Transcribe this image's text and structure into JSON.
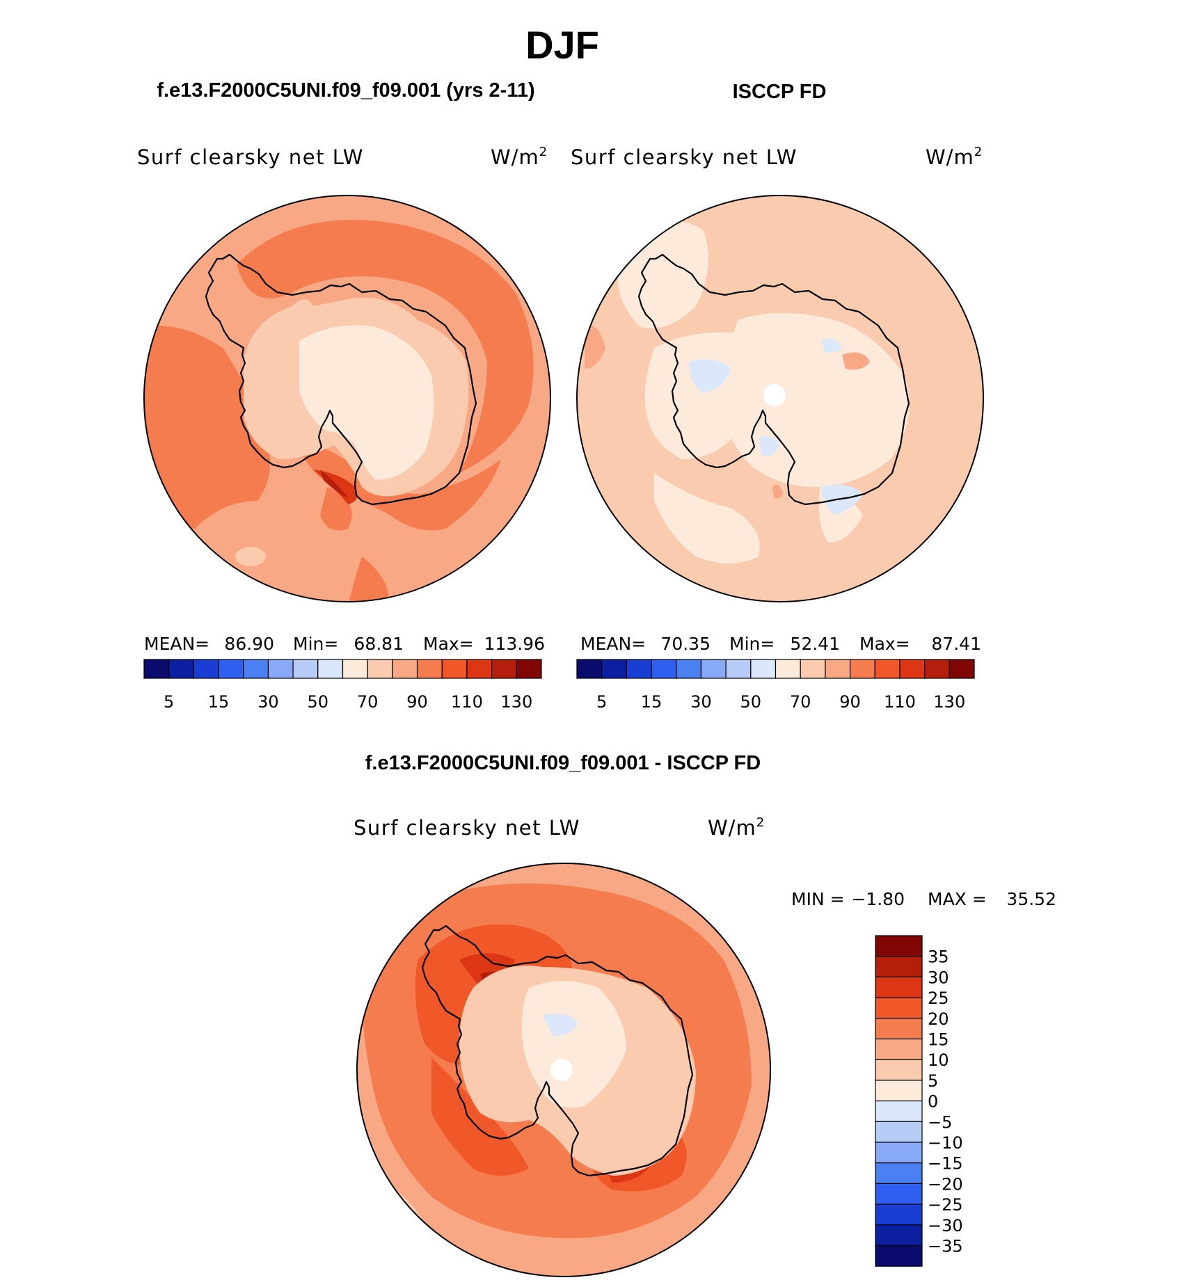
{
  "title": "DJF",
  "panels": {
    "model": {
      "case_title": "f.e13.F2000C5UNI.f09_f09.001 (yrs 2-11)",
      "variable": "Surf clearsky net LW",
      "unit": "W/m",
      "unit_exp": "2",
      "stats": {
        "mean_label": "MEAN=",
        "mean": "86.90",
        "min_label": "Min=",
        "min": "68.81",
        "max_label": "Max=",
        "max": "113.96"
      }
    },
    "obs": {
      "case_title": "ISCCP FD",
      "variable": "Surf clearsky net LW",
      "unit": "W/m",
      "unit_exp": "2",
      "stats": {
        "mean_label": "MEAN=",
        "mean": "70.35",
        "min_label": "Min=",
        "min": "52.41",
        "max_label": "Max=",
        "max": "87.41"
      }
    },
    "diff": {
      "case_title": "f.e13.F2000C5UNI.f09_f09.001 - ISCCP FD",
      "variable": "Surf clearsky net LW",
      "unit": "W/m",
      "unit_exp": "2",
      "stats": {
        "min_label": "MIN =",
        "min": "−1.80",
        "max_label": "MAX =",
        "max": "35.52"
      }
    }
  },
  "colorbar_abs": {
    "labels": [
      "5",
      "15",
      "30",
      "50",
      "70",
      "90",
      "110",
      "130"
    ],
    "colors": [
      "#0b0b6e",
      "#0c1fa0",
      "#1a3ed4",
      "#2e5ff0",
      "#4c80f2",
      "#87a9f6",
      "#b7cdf8",
      "#dbe8fb",
      "#fdeadb",
      "#fbcbb0",
      "#f8a884",
      "#f47c4f",
      "#f0582a",
      "#dc3614",
      "#b51e0a",
      "#7f0603"
    ]
  },
  "colorbar_diff": {
    "labels": [
      "35",
      "30",
      "25",
      "20",
      "15",
      "10",
      "5",
      "0",
      "−5",
      "−10",
      "−15",
      "−20",
      "−25",
      "−30",
      "−35"
    ],
    "colors": [
      "#7f0603",
      "#b51e0a",
      "#dc3614",
      "#f0582a",
      "#f47c4f",
      "#f8a884",
      "#fbcbb0",
      "#fdeadb",
      "#dbe8fb",
      "#b7cdf8",
      "#87a9f6",
      "#4c80f2",
      "#2e5ff0",
      "#1a3ed4",
      "#0c1fa0",
      "#0b0b6e"
    ]
  }
}
